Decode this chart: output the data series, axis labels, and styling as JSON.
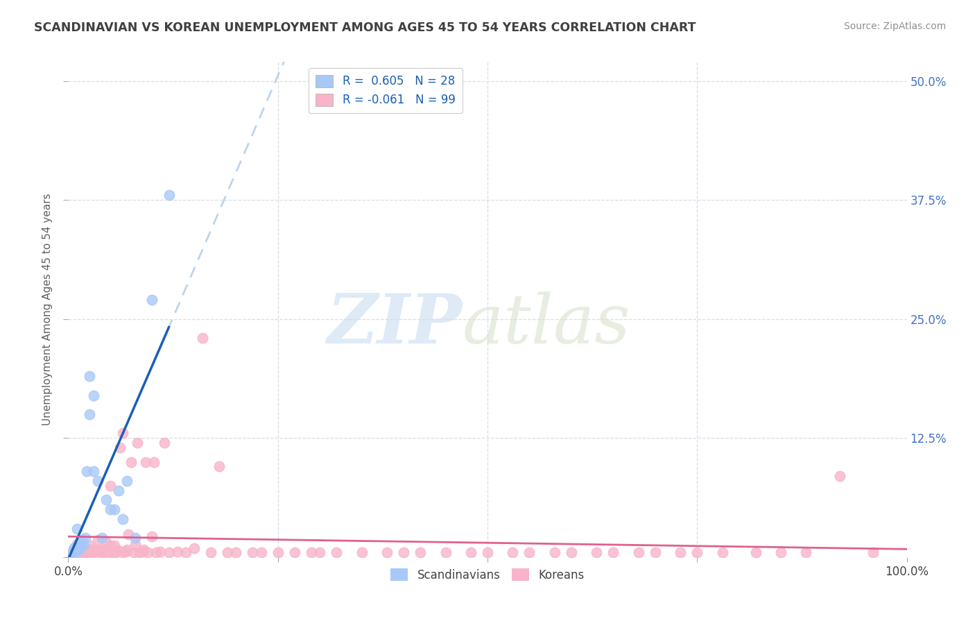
{
  "title": "SCANDINAVIAN VS KOREAN UNEMPLOYMENT AMONG AGES 45 TO 54 YEARS CORRELATION CHART",
  "source": "Source: ZipAtlas.com",
  "ylabel": "Unemployment Among Ages 45 to 54 years",
  "xlim": [
    0.0,
    1.0
  ],
  "ylim": [
    0.0,
    0.52
  ],
  "yticks": [
    0.0,
    0.125,
    0.25,
    0.375,
    0.5
  ],
  "yticklabels_right": [
    "",
    "12.5%",
    "25.0%",
    "37.5%",
    "50.0%"
  ],
  "xtick_left_label": "0.0%",
  "xtick_right_label": "100.0%",
  "legend_scand": "R =  0.605   N = 28",
  "legend_korean": "R = -0.061   N = 99",
  "scand_color": "#a8c8f8",
  "korean_color": "#f8b4c8",
  "scand_line_color": "#1a5fb4",
  "korean_line_color": "#e06090",
  "dash_line_color": "#c0d4e8",
  "background_color": "#ffffff",
  "grid_color": "#d8dde8",
  "title_color": "#404040",
  "source_color": "#909090",
  "ylabel_color": "#606060",
  "right_tick_color": "#4472C4",
  "scand_R": 0.605,
  "scand_N": 28,
  "korean_R": -0.061,
  "korean_N": 99,
  "scandinavians_x": [
    0.005,
    0.007,
    0.008,
    0.009,
    0.01,
    0.012,
    0.013,
    0.014,
    0.015,
    0.016,
    0.018,
    0.02,
    0.022,
    0.025,
    0.025,
    0.03,
    0.03,
    0.035,
    0.04,
    0.045,
    0.05,
    0.055,
    0.06,
    0.065,
    0.07,
    0.08,
    0.1,
    0.12
  ],
  "scandinavians_y": [
    0.005,
    0.01,
    0.008,
    0.006,
    0.03,
    0.01,
    0.008,
    0.012,
    0.015,
    0.018,
    0.012,
    0.02,
    0.09,
    0.15,
    0.19,
    0.09,
    0.17,
    0.08,
    0.02,
    0.06,
    0.05,
    0.05,
    0.07,
    0.04,
    0.08,
    0.02,
    0.27,
    0.38
  ],
  "koreans_x": [
    0.005,
    0.006,
    0.007,
    0.008,
    0.009,
    0.01,
    0.01,
    0.012,
    0.013,
    0.015,
    0.015,
    0.015,
    0.016,
    0.018,
    0.02,
    0.02,
    0.022,
    0.025,
    0.025,
    0.025,
    0.028,
    0.03,
    0.03,
    0.032,
    0.035,
    0.035,
    0.038,
    0.04,
    0.04,
    0.042,
    0.045,
    0.045,
    0.048,
    0.05,
    0.05,
    0.052,
    0.055,
    0.055,
    0.058,
    0.06,
    0.062,
    0.065,
    0.065,
    0.068,
    0.07,
    0.072,
    0.075,
    0.078,
    0.08,
    0.082,
    0.085,
    0.088,
    0.09,
    0.092,
    0.095,
    0.1,
    0.102,
    0.105,
    0.11,
    0.115,
    0.12,
    0.13,
    0.14,
    0.15,
    0.16,
    0.17,
    0.18,
    0.19,
    0.2,
    0.22,
    0.23,
    0.25,
    0.27,
    0.29,
    0.3,
    0.32,
    0.35,
    0.38,
    0.4,
    0.42,
    0.45,
    0.48,
    0.5,
    0.53,
    0.55,
    0.58,
    0.6,
    0.63,
    0.65,
    0.68,
    0.7,
    0.73,
    0.75,
    0.78,
    0.82,
    0.85,
    0.88,
    0.92,
    0.96
  ],
  "koreans_y": [
    0.005,
    0.008,
    0.005,
    0.004,
    0.006,
    0.006,
    0.014,
    0.005,
    0.007,
    0.005,
    0.009,
    0.013,
    0.006,
    0.007,
    0.005,
    0.009,
    0.006,
    0.004,
    0.008,
    0.012,
    0.006,
    0.004,
    0.008,
    0.006,
    0.008,
    0.018,
    0.006,
    0.004,
    0.008,
    0.006,
    0.008,
    0.016,
    0.005,
    0.012,
    0.075,
    0.005,
    0.004,
    0.012,
    0.006,
    0.007,
    0.115,
    0.005,
    0.13,
    0.006,
    0.008,
    0.024,
    0.1,
    0.005,
    0.013,
    0.12,
    0.005,
    0.006,
    0.008,
    0.1,
    0.005,
    0.022,
    0.1,
    0.005,
    0.006,
    0.12,
    0.005,
    0.006,
    0.005,
    0.009,
    0.23,
    0.005,
    0.095,
    0.005,
    0.005,
    0.005,
    0.005,
    0.005,
    0.005,
    0.005,
    0.005,
    0.005,
    0.005,
    0.005,
    0.005,
    0.005,
    0.005,
    0.005,
    0.005,
    0.005,
    0.005,
    0.005,
    0.005,
    0.005,
    0.005,
    0.005,
    0.005,
    0.005,
    0.005,
    0.005,
    0.005,
    0.005,
    0.005,
    0.085,
    0.005
  ]
}
